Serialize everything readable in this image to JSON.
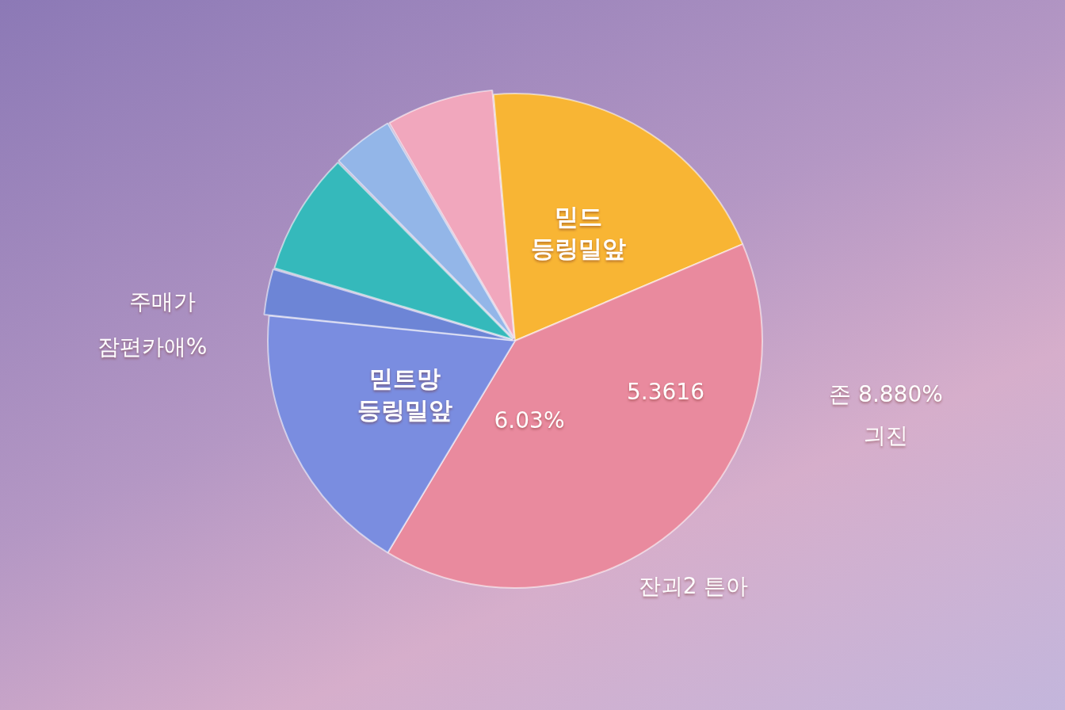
{
  "chart_data": {
    "type": "pie",
    "categories": [
      "믿드 등링밀앞",
      null,
      "믿트망 등링밀앞",
      null,
      null,
      null,
      null
    ],
    "values": [
      20,
      40,
      18,
      3,
      8,
      4,
      7
    ],
    "colors": [
      "#f8b534",
      "#e98a9e",
      "#7a8de0",
      "#6d85d6",
      "#35b9bb",
      "#93b6e8",
      "#f1a7bd"
    ],
    "legend": false,
    "annotations": [
      "주매가",
      "잠편카애%",
      "5.3616",
      "6.03%",
      "존 8.880%",
      "긔진",
      "잔괴2 튼아"
    ]
  }
}
